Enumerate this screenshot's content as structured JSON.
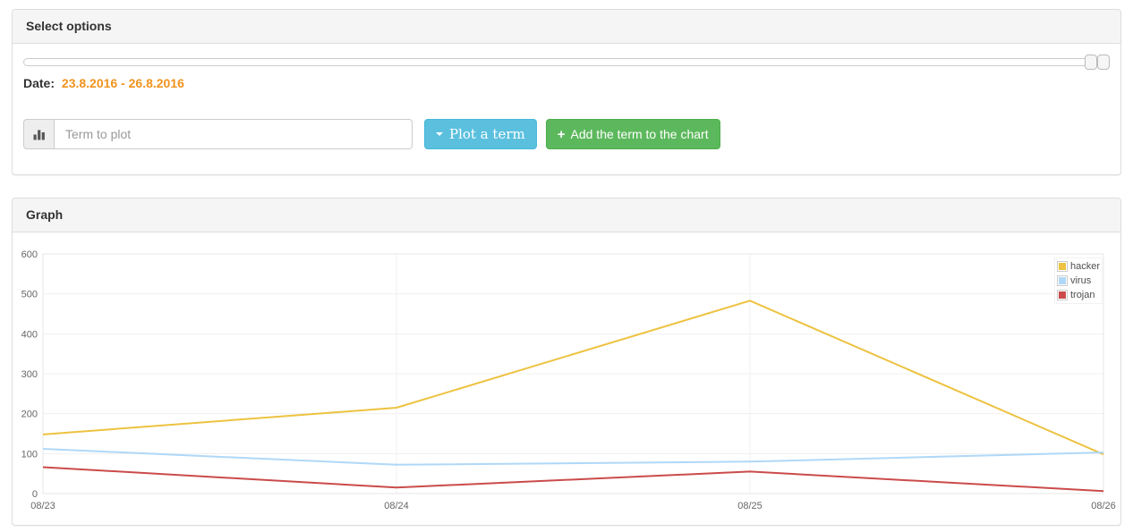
{
  "select_options_panel": {
    "title": "Select options",
    "date_label": "Date:",
    "date_range": "23.8.2016 - 26.8.2016",
    "date_range_color": "#f0931e",
    "term_input": {
      "value": "",
      "placeholder": "Term to plot"
    },
    "plot_button": {
      "label": "Plot a term",
      "icon": "caret-down-icon",
      "color": "#5bc0de"
    },
    "add_button": {
      "label": "Add the term to the chart",
      "icon_char": "+",
      "icon": "plus-icon",
      "color": "#5cb85c"
    },
    "input_icon": "bar-chart-icon"
  },
  "graph_panel": {
    "title": "Graph"
  },
  "chart_data": {
    "type": "line",
    "x": [
      "08/23",
      "08/24",
      "08/25",
      "08/26"
    ],
    "series": [
      {
        "name": "hacker",
        "color": "#edc240",
        "values": [
          148,
          215,
          483,
          98
        ]
      },
      {
        "name": "virus",
        "color": "#afd8f8",
        "values": [
          112,
          72,
          80,
          103
        ]
      },
      {
        "name": "trojan",
        "color": "#cb4b4b",
        "values": [
          66,
          15,
          55,
          6
        ]
      }
    ],
    "ylim": [
      0,
      600
    ],
    "yticks": [
      0,
      100,
      200,
      300,
      400,
      500,
      600
    ],
    "grid": true,
    "legend_position": "top-right",
    "axis_text_color": "#666666",
    "grid_color": "#f0f0f0",
    "plot_border_color": "#e7e7e7"
  }
}
